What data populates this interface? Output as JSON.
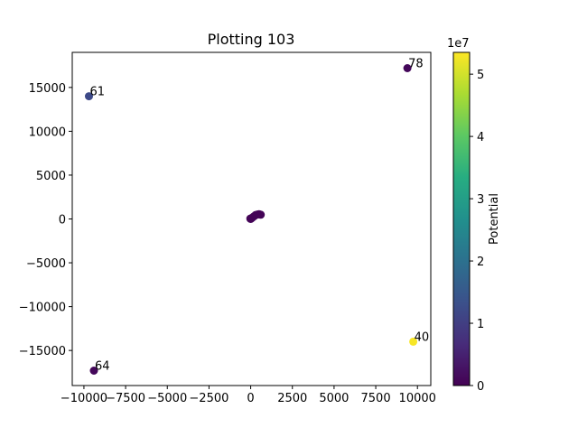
{
  "chart_data": {
    "type": "scatter",
    "title": "Plotting 103",
    "xlabel": "",
    "ylabel": "",
    "xlim": [
      -10700,
      10800
    ],
    "ylim": [
      -19000,
      19000
    ],
    "x_ticks": [
      -10000,
      -7500,
      -5000,
      -2500,
      0,
      2500,
      5000,
      7500,
      10000
    ],
    "x_tick_labels": [
      "−10000",
      "−7500",
      "−5000",
      "−2500",
      "0",
      "2500",
      "5000",
      "7500",
      "10000"
    ],
    "y_ticks": [
      -15000,
      -10000,
      -5000,
      0,
      5000,
      10000,
      15000
    ],
    "y_tick_labels": [
      "−15000",
      "−10000",
      "−5000",
      "0",
      "5000",
      "10000",
      "15000"
    ],
    "grid": false,
    "colorbar": {
      "label": "Potential",
      "exponent_label": "1e7",
      "range": [
        0,
        5.35
      ],
      "ticks": [
        0,
        1,
        2,
        3,
        4,
        5
      ],
      "tick_labels": [
        "0",
        "1",
        "2",
        "3",
        "4",
        "5"
      ],
      "colormap": "viridis"
    },
    "points": [
      {
        "label": "78",
        "x": 9400,
        "y": 17200,
        "value": 0.1
      },
      {
        "label": "61",
        "x": -9700,
        "y": 14000,
        "value": 1.2
      },
      {
        "label": "40",
        "x": 9750,
        "y": -14000,
        "value": 5.3
      },
      {
        "label": "64",
        "x": -9400,
        "y": -17300,
        "value": 0.1
      },
      {
        "label": "",
        "x": 0,
        "y": 0,
        "value": 0.05
      },
      {
        "label": "",
        "x": 50,
        "y": 80,
        "value": 0.05
      },
      {
        "label": "",
        "x": -20,
        "y": 40,
        "value": 0.05
      },
      {
        "label": "",
        "x": 100,
        "y": 150,
        "value": 0.05
      },
      {
        "label": "",
        "x": 300,
        "y": 450,
        "value": 0.05
      },
      {
        "label": "",
        "x": 400,
        "y": 500,
        "value": 0.05
      },
      {
        "label": "",
        "x": 500,
        "y": 550,
        "value": 0.05
      },
      {
        "label": "",
        "x": 600,
        "y": 480,
        "value": 0.05
      },
      {
        "label": "",
        "x": 200,
        "y": 300,
        "value": 0.05
      }
    ]
  }
}
